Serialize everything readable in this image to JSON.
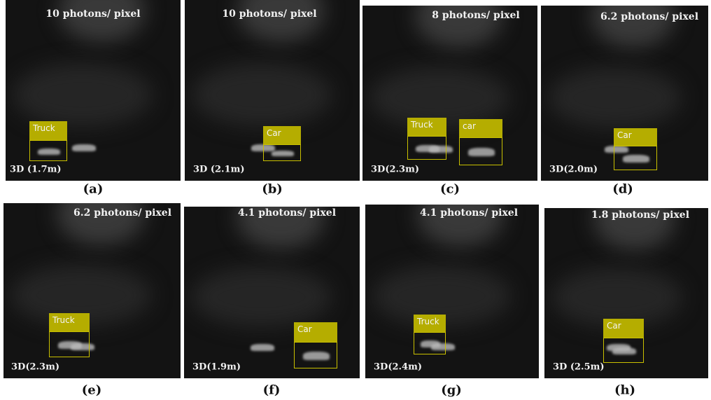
{
  "panels": [
    {
      "photons": "10 photons/ pixel",
      "depth": "3D (1.7m)",
      "caption": "(a)",
      "boxes": [
        {
          "label": "Truck"
        }
      ]
    },
    {
      "photons": "10 photons/ pixel",
      "depth": "3D (2.1m)",
      "caption": "(b)",
      "boxes": [
        {
          "label": "Car"
        }
      ]
    },
    {
      "photons": "8 photons/ pixel",
      "depth": "3D(2.3m)",
      "caption": "(c)",
      "boxes": [
        {
          "label": "Truck"
        },
        {
          "label": "car"
        }
      ]
    },
    {
      "photons": "6.2 photons/ pixel",
      "depth": "3D(2.0m)",
      "caption": "(d)",
      "boxes": [
        {
          "label": "Car"
        }
      ]
    },
    {
      "photons": "6.2 photons/ pixel",
      "depth": "3D(2.3m)",
      "caption": "(e)",
      "boxes": [
        {
          "label": "Truck"
        }
      ]
    },
    {
      "photons": "4.1 photons/ pixel",
      "depth": "3D(1.9m)",
      "caption": "(f)",
      "boxes": [
        {
          "label": "Car"
        }
      ]
    },
    {
      "photons": "4.1 photons/ pixel",
      "depth": "3D(2.4m)",
      "caption": "(g)",
      "boxes": [
        {
          "label": "Truck"
        }
      ]
    },
    {
      "photons": "1.8 photons/ pixel",
      "depth": "3D (2.5m)",
      "caption": "(h)",
      "boxes": [
        {
          "label": "Car"
        }
      ]
    }
  ]
}
